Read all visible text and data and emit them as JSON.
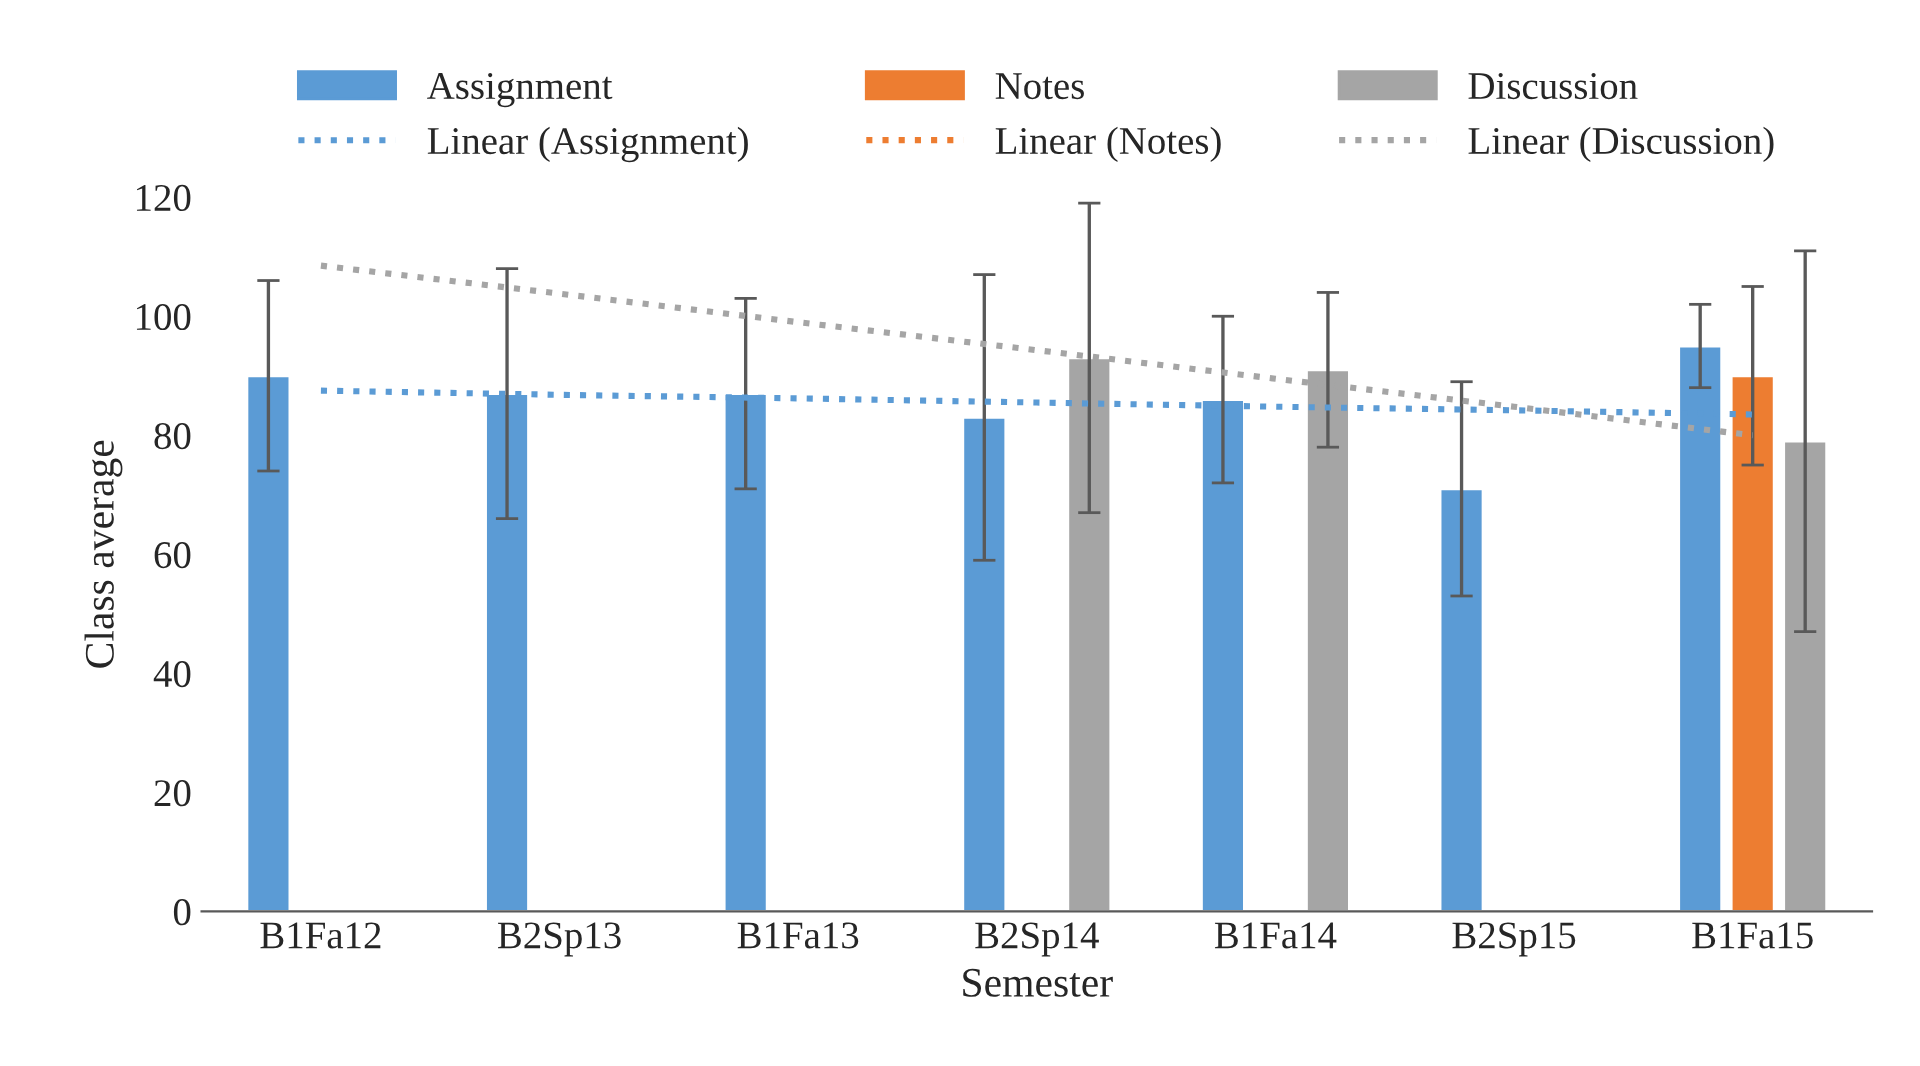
{
  "chart_data": {
    "type": "bar",
    "xlabel": "Semester",
    "ylabel": "Class average",
    "categories": [
      "B1Fa12",
      "B2Sp13",
      "B1Fa13",
      "B2Sp14",
      "B1Fa14",
      "B2Sp15",
      "B1Fa15"
    ],
    "series": [
      {
        "name": "Assignment",
        "color": "#5b9bd5",
        "values": [
          90,
          87,
          87,
          83,
          86,
          71,
          95
        ],
        "errors": [
          16,
          21,
          16,
          24,
          14,
          18,
          7
        ]
      },
      {
        "name": "Notes",
        "color": "#ed7d31",
        "values": [
          null,
          null,
          null,
          null,
          null,
          null,
          90
        ],
        "errors": [
          null,
          null,
          null,
          null,
          null,
          null,
          15
        ]
      },
      {
        "name": "Discussion",
        "color": "#a5a5a5",
        "values": [
          null,
          null,
          null,
          93,
          91,
          null,
          79
        ],
        "errors": [
          null,
          null,
          null,
          26,
          13,
          null,
          32
        ]
      },
      {
        "name": "Linear (Assignment)",
        "type": "line",
        "line_style": "dotted",
        "color": "#5b9bd5",
        "values": [
          87.5,
          86.8,
          86.2,
          85.5,
          84.8,
          84.2,
          83.5
        ]
      },
      {
        "name": "Linear (Notes)",
        "type": "line",
        "line_style": "dotted",
        "color": "#ed7d31",
        "values": [
          null,
          null,
          null,
          null,
          null,
          null,
          null
        ]
      },
      {
        "name": "Linear (Discussion)",
        "type": "line",
        "line_style": "dotted",
        "color": "#a5a5a5",
        "values": [
          108.5,
          103.8,
          99,
          94.3,
          89.5,
          84.8,
          80
        ]
      }
    ],
    "ylim": [
      0,
      120
    ],
    "yticks": [
      0,
      20,
      40,
      60,
      80,
      100,
      120
    ],
    "legend": "top",
    "grid": false
  }
}
